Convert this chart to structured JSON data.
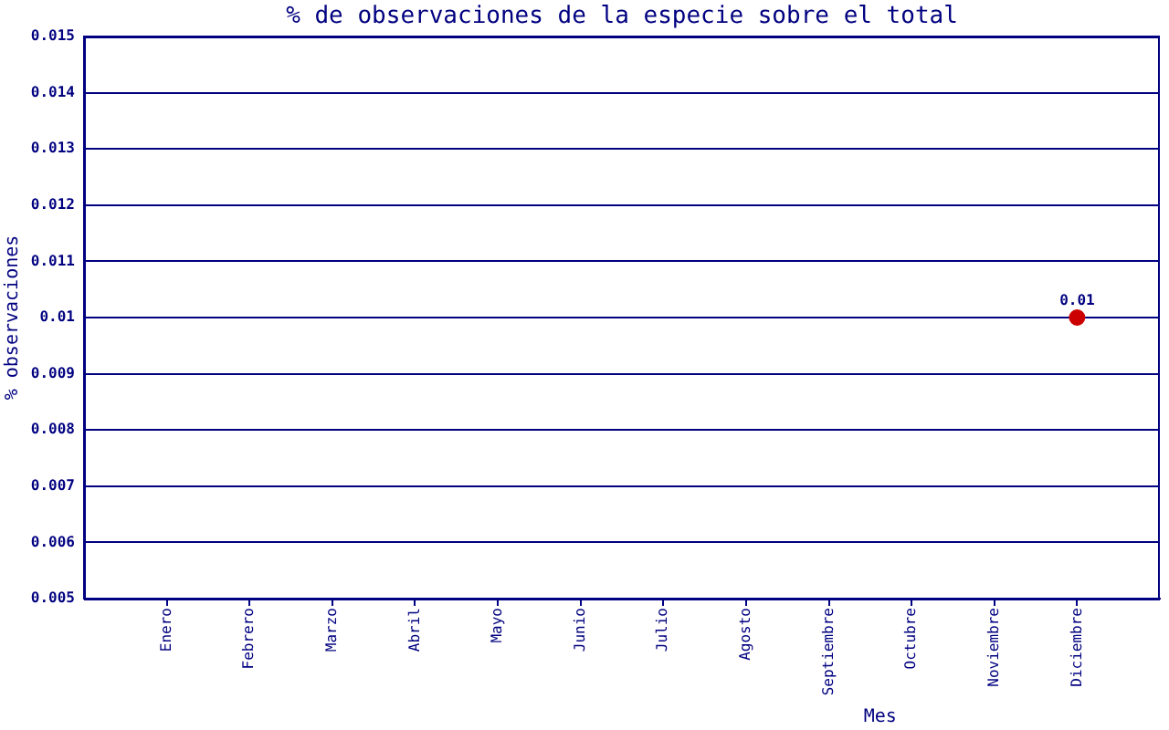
{
  "chart_data": {
    "type": "line",
    "title": "% de observaciones de la especie sobre el total",
    "xlabel": "Mes",
    "ylabel": "% observaciones",
    "categories": [
      "Enero",
      "Febrero",
      "Marzo",
      "Abril",
      "Mayo",
      "Junio",
      "Julio",
      "Agosto",
      "Septiembre",
      "Octubre",
      "Noviembre",
      "Diciembre"
    ],
    "values": [
      null,
      null,
      null,
      null,
      null,
      null,
      null,
      null,
      null,
      null,
      null,
      0.01
    ],
    "color": "#cc0000",
    "ylim": [
      0.005,
      0.015
    ],
    "yticks": [
      0.005,
      0.006,
      0.007,
      0.008,
      0.009,
      0.01,
      0.011,
      0.012,
      0.013,
      0.014,
      0.015
    ],
    "grid": "y",
    "marker": "circle",
    "data_labels": true
  }
}
